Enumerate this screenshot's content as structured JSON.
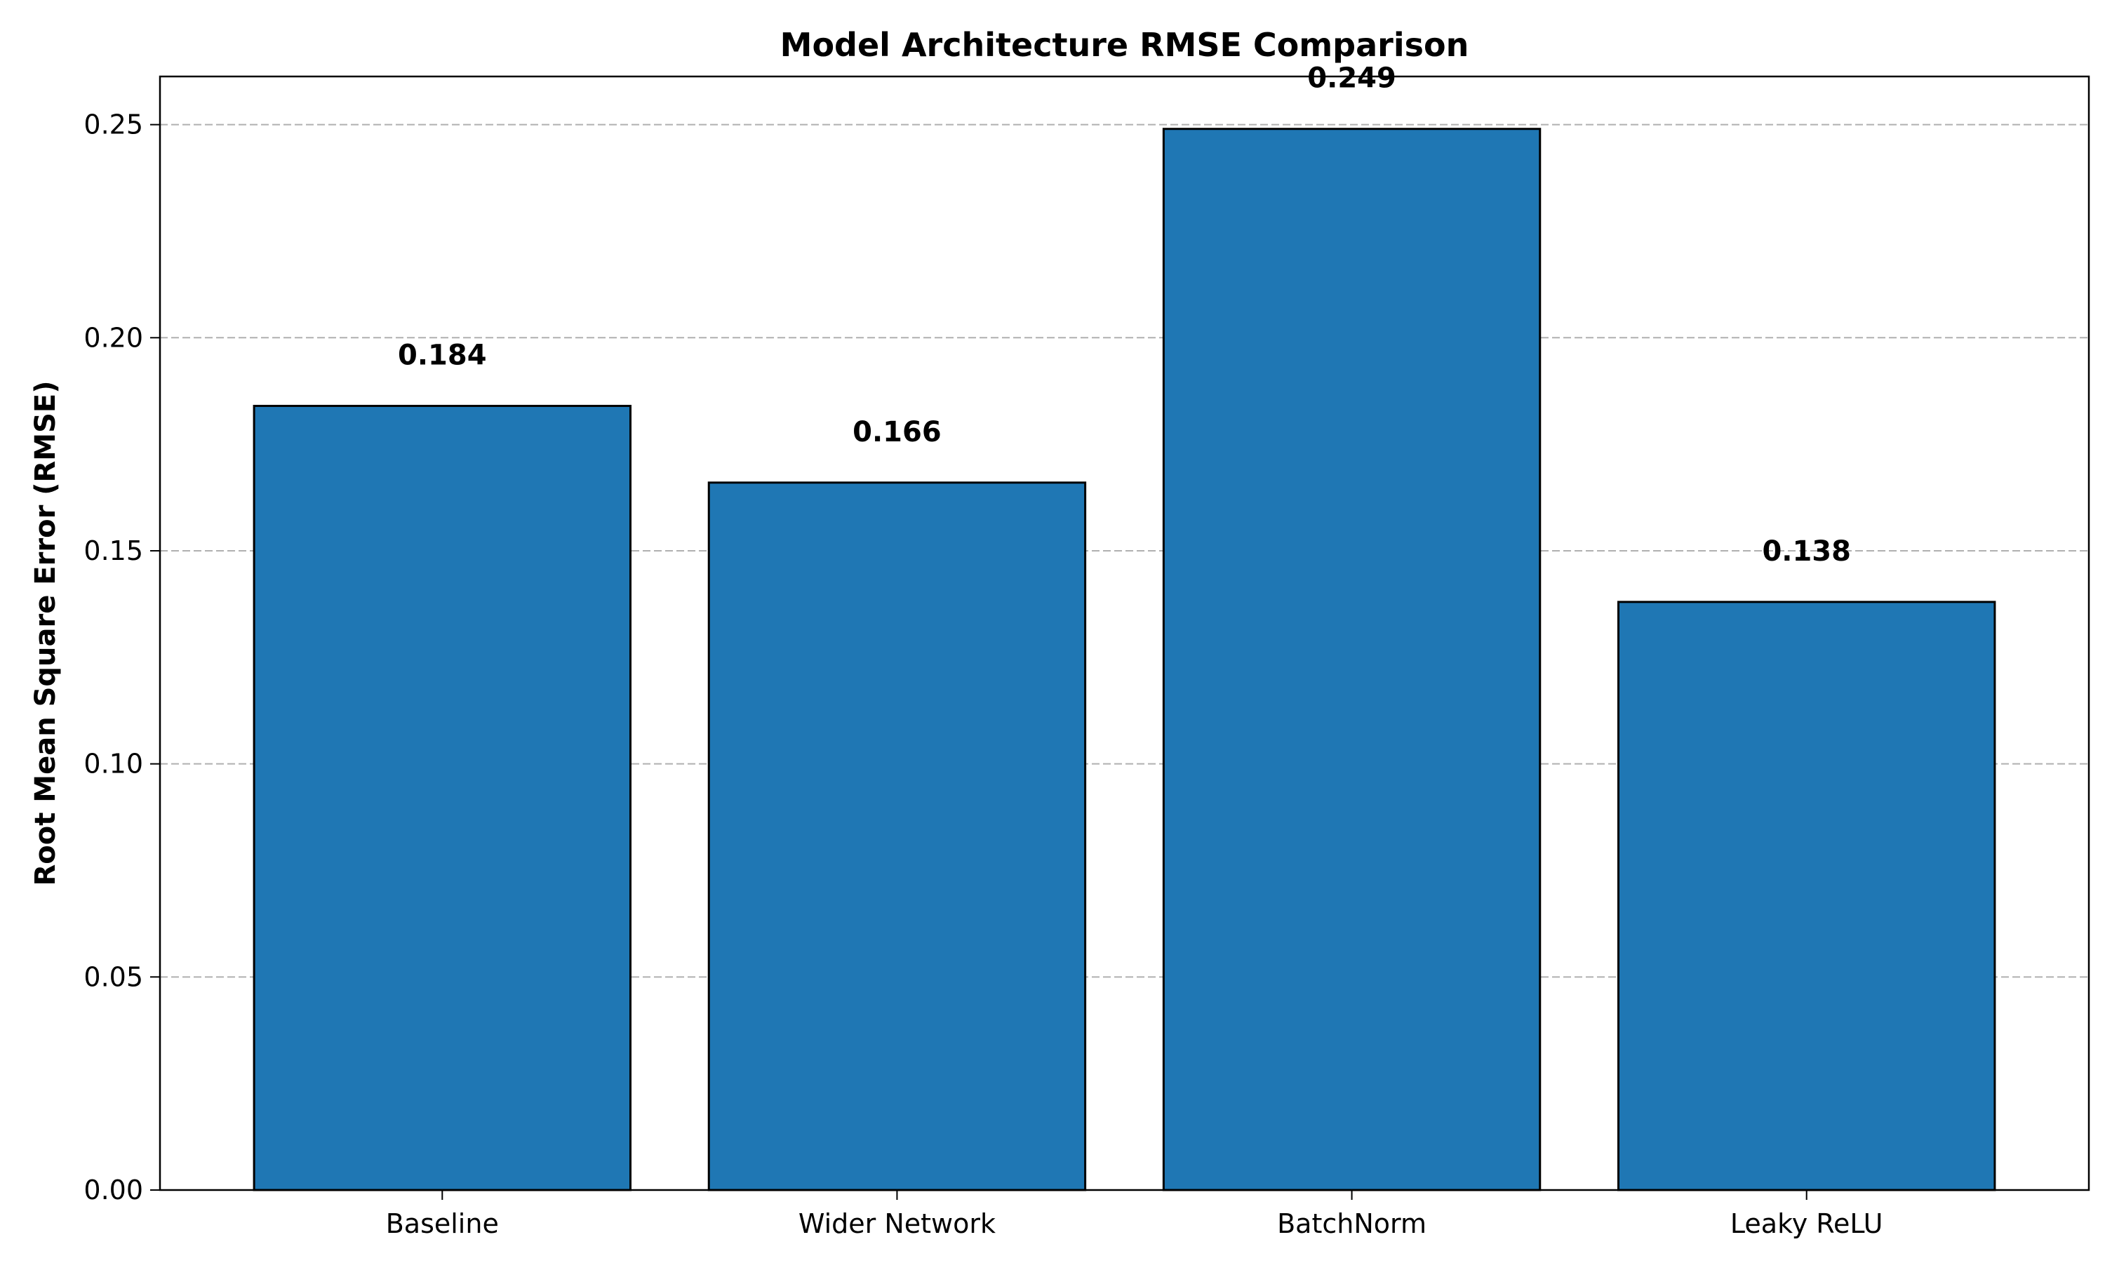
{
  "chart_data": {
    "type": "bar",
    "title": "Model Architecture RMSE Comparison",
    "xlabel": "",
    "ylabel": "Root Mean Square Error (RMSE)",
    "categories": [
      "Baseline",
      "Wider Network",
      "BatchNorm",
      "Leaky ReLU"
    ],
    "values": [
      0.184,
      0.166,
      0.249,
      0.138
    ],
    "value_labels": [
      "0.184",
      "0.166",
      "0.249",
      "0.138"
    ],
    "ylim": [
      0,
      0.2613
    ],
    "yticks": [
      0.0,
      0.05,
      0.1,
      0.15,
      0.2,
      0.25
    ],
    "ytick_labels": [
      "0.00",
      "0.05",
      "0.10",
      "0.15",
      "0.20",
      "0.25"
    ],
    "grid": "y-dashed",
    "legend": "none",
    "bar_color": "#1f77b4",
    "edge_color": "#000000",
    "grid_color": "#b0b0b0"
  }
}
